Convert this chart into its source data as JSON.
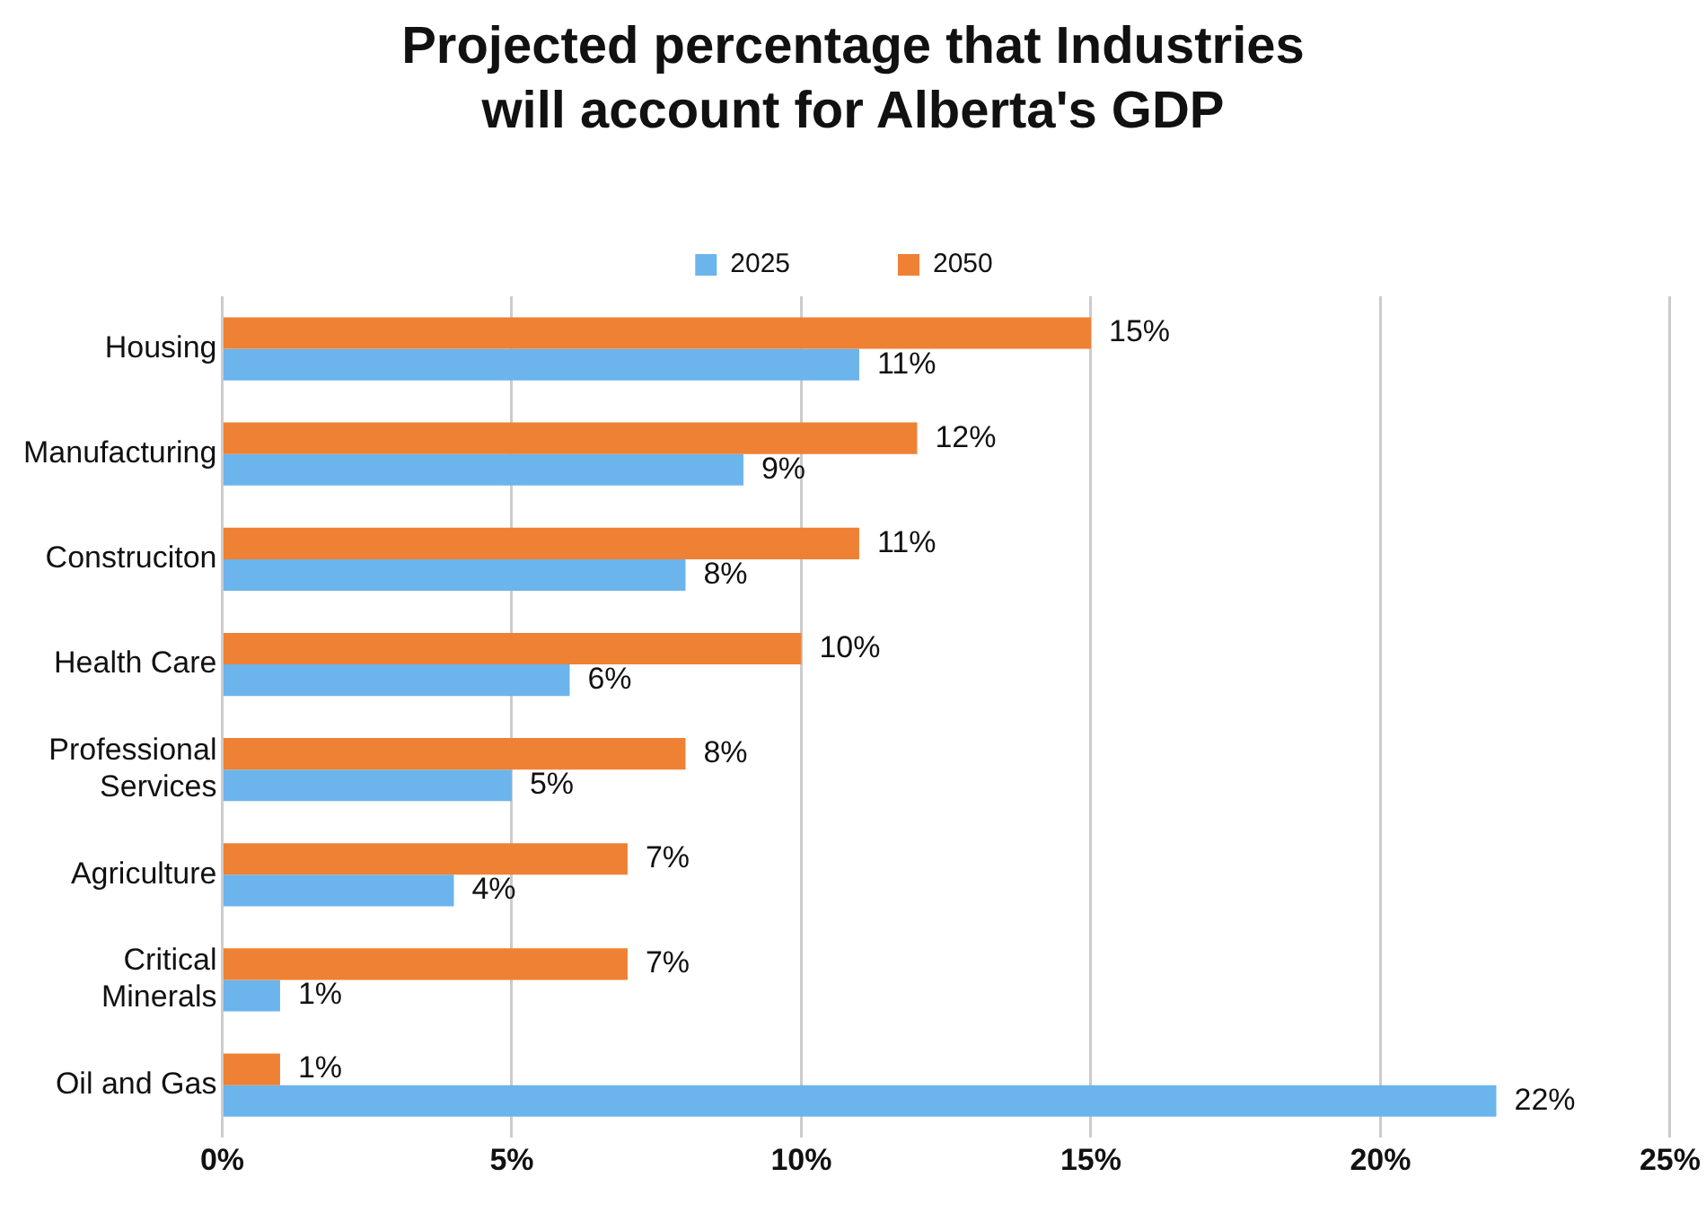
{
  "chart_data": {
    "type": "bar",
    "orientation": "horizontal",
    "title": "Projected percentage that Industries will account for Alberta's GDP",
    "categories": [
      "Housing",
      "Manufacturing",
      "Construciton",
      "Health Care",
      "Professional Services",
      "Agriculture",
      "Critical Minerals",
      "Oil and Gas"
    ],
    "series": [
      {
        "name": "2025",
        "color": "#6cb4ec",
        "values": [
          11,
          9,
          8,
          6,
          5,
          4,
          1,
          22
        ],
        "value_labels": [
          "11%",
          "9%",
          "8%",
          "6%",
          "5%",
          "4%",
          "1%",
          "22%"
        ]
      },
      {
        "name": "2050",
        "color": "#ee8133",
        "values": [
          15,
          12,
          11,
          10,
          8,
          7,
          7,
          1
        ],
        "value_labels": [
          "15%",
          "12%",
          "11%",
          "10%",
          "8%",
          "7%",
          "7%",
          "1%"
        ]
      }
    ],
    "xlim": [
      0,
      25
    ],
    "xticks": [
      {
        "value": 0,
        "label": "0%"
      },
      {
        "value": 5,
        "label": "5%"
      },
      {
        "value": 10,
        "label": "10%"
      },
      {
        "value": 15,
        "label": "15%"
      },
      {
        "value": 20,
        "label": "20%"
      },
      {
        "value": 25,
        "label": "25%"
      }
    ],
    "grid": "x",
    "legend": "top"
  }
}
